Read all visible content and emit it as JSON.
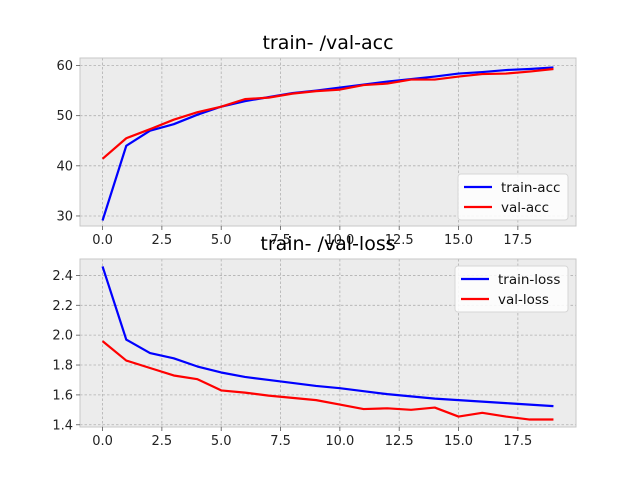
{
  "chart_data": [
    {
      "type": "line",
      "title": "train- /val-acc",
      "xlabel": "",
      "ylabel": "",
      "x": [
        0,
        1,
        2,
        3,
        4,
        5,
        6,
        7,
        8,
        9,
        10,
        11,
        12,
        13,
        14,
        15,
        16,
        17,
        18,
        19
      ],
      "xlim": [
        -0.95,
        19.95
      ],
      "ylim": [
        28,
        61.5
      ],
      "xticks": [
        0.0,
        2.5,
        5.0,
        7.5,
        10.0,
        12.5,
        15.0,
        17.5
      ],
      "xtick_labels": [
        "0.0",
        "2.5",
        "5.0",
        "7.5",
        "10.0",
        "12.5",
        "15.0",
        "17.5"
      ],
      "yticks": [
        30,
        40,
        50,
        60
      ],
      "ytick_labels": [
        "30",
        "40",
        "50",
        "60"
      ],
      "grid": true,
      "legend_position": "lower-right",
      "series": [
        {
          "name": "train-acc",
          "color": "#0000ff",
          "values": [
            29.1,
            44.0,
            47.0,
            48.3,
            50.2,
            51.8,
            52.9,
            53.7,
            54.5,
            55.0,
            55.6,
            56.2,
            56.8,
            57.3,
            57.8,
            58.4,
            58.7,
            59.1,
            59.3,
            59.6
          ]
        },
        {
          "name": "val-acc",
          "color": "#ff0000",
          "values": [
            41.4,
            45.5,
            47.3,
            49.2,
            50.7,
            51.8,
            53.3,
            53.6,
            54.4,
            54.9,
            55.2,
            56.1,
            56.4,
            57.2,
            57.2,
            57.8,
            58.3,
            58.4,
            58.8,
            59.3
          ]
        }
      ]
    },
    {
      "type": "line",
      "title": "train- /val-loss",
      "xlabel": "",
      "ylabel": "",
      "x": [
        0,
        1,
        2,
        3,
        4,
        5,
        6,
        7,
        8,
        9,
        10,
        11,
        12,
        13,
        14,
        15,
        16,
        17,
        18,
        19
      ],
      "xlim": [
        -0.95,
        19.95
      ],
      "ylim": [
        1.385,
        2.51
      ],
      "xticks": [
        0.0,
        2.5,
        5.0,
        7.5,
        10.0,
        12.5,
        15.0,
        17.5
      ],
      "xtick_labels": [
        "0.0",
        "2.5",
        "5.0",
        "7.5",
        "10.0",
        "12.5",
        "15.0",
        "17.5"
      ],
      "yticks": [
        1.4,
        1.6,
        1.8,
        2.0,
        2.2,
        2.4
      ],
      "ytick_labels": [
        "1.4",
        "1.6",
        "1.8",
        "2.0",
        "2.2",
        "2.4"
      ],
      "grid": true,
      "legend_position": "upper-right",
      "series": [
        {
          "name": "train-loss",
          "color": "#0000ff",
          "values": [
            2.46,
            1.97,
            1.88,
            1.845,
            1.79,
            1.75,
            1.72,
            1.7,
            1.68,
            1.66,
            1.645,
            1.625,
            1.605,
            1.59,
            1.575,
            1.565,
            1.555,
            1.545,
            1.535,
            1.525
          ]
        },
        {
          "name": "val-loss",
          "color": "#ff0000",
          "values": [
            1.96,
            1.83,
            1.78,
            1.73,
            1.705,
            1.63,
            1.615,
            1.595,
            1.58,
            1.565,
            1.535,
            1.505,
            1.51,
            1.5,
            1.515,
            1.455,
            1.48,
            1.455,
            1.435,
            1.435
          ]
        }
      ]
    }
  ]
}
